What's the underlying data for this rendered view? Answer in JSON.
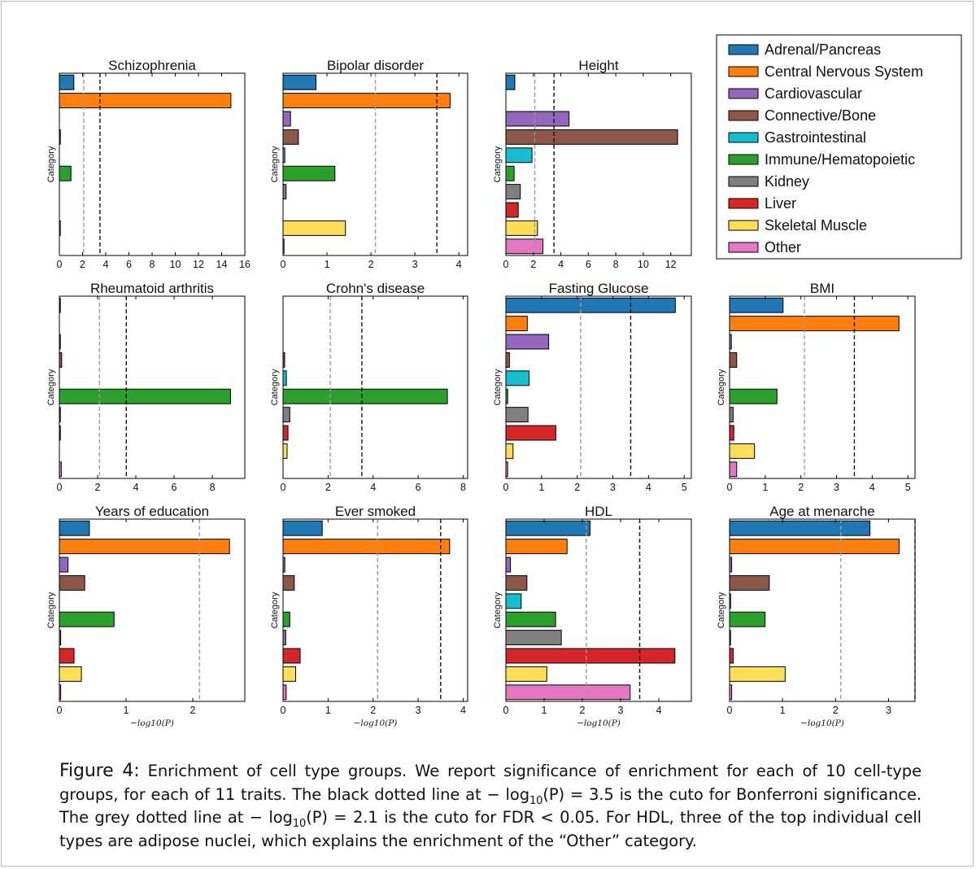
{
  "legend": {
    "entries": [
      {
        "label": "Adrenal/Pancreas",
        "color": "#1f77b4"
      },
      {
        "label": "Central Nervous System",
        "color": "#ff7f0e"
      },
      {
        "label": "Cardiovascular",
        "color": "#9467bd"
      },
      {
        "label": "Connective/Bone",
        "color": "#8c564b"
      },
      {
        "label": "Gastrointestinal",
        "color": "#17becf"
      },
      {
        "label": "Immune/Hematopoietic",
        "color": "#2ca02c"
      },
      {
        "label": "Kidney",
        "color": "#7f7f7f"
      },
      {
        "label": "Liver",
        "color": "#d62728"
      },
      {
        "label": "Skeletal Muscle",
        "color": "#ffdd57"
      },
      {
        "label": "Other",
        "color": "#e377c2"
      }
    ]
  },
  "ylabel": "Category",
  "xlabel": "−log10(P)",
  "caption": {
    "figure_label": "Figure 4:",
    "text_1": "Enrichment of cell type groups. We report significance of enrichment for each of 10 cell-type groups, for each of 11 traits. The black dotted line at",
    "math_1": "− log",
    "math_sub": "10",
    "math_2": "(P) = 3.5",
    "text_2": "is the cuto  for Bonferroni significance. The grey dotted line at",
    "math_3": "(P) = 2.1",
    "text_3": "is the cuto  for FDR < 0.05. For HDL, three of the top individual cell types are adipose nuclei, which explains the enrichment of the “Other” category."
  },
  "chart_data": [
    {
      "type": "bar",
      "orientation": "horizontal",
      "title": "Schizophrenia",
      "categories": [
        "Adrenal/Pancreas",
        "Central Nervous System",
        "Cardiovascular",
        "Connective/Bone",
        "Gastrointestinal",
        "Immune/Hematopoietic",
        "Kidney",
        "Liver",
        "Skeletal Muscle",
        "Other"
      ],
      "values": [
        1.25,
        14.8,
        0.0,
        0.05,
        0.0,
        1.0,
        0.0,
        0.0,
        0.08,
        0.0
      ],
      "xlim": [
        0,
        16
      ],
      "xticks": [
        0,
        2,
        4,
        6,
        8,
        10,
        12,
        14,
        16
      ],
      "fdr_line": 2.1,
      "bonferroni_line": 3.5,
      "ylabel": "Category",
      "xlabel": ""
    },
    {
      "type": "bar",
      "orientation": "horizontal",
      "title": "Bipolar disorder",
      "categories": [
        "Adrenal/Pancreas",
        "Central Nervous System",
        "Cardiovascular",
        "Connective/Bone",
        "Gastrointestinal",
        "Immune/Hematopoietic",
        "Kidney",
        "Liver",
        "Skeletal Muscle",
        "Other"
      ],
      "values": [
        0.75,
        3.8,
        0.17,
        0.35,
        0.04,
        1.18,
        0.07,
        0.0,
        1.42,
        0.02
      ],
      "xlim": [
        0,
        4.2
      ],
      "xticks": [
        0,
        1,
        2,
        3,
        4
      ],
      "fdr_line": 2.1,
      "bonferroni_line": 3.5,
      "ylabel": "Category",
      "xlabel": ""
    },
    {
      "type": "bar",
      "orientation": "horizontal",
      "title": "Height",
      "categories": [
        "Adrenal/Pancreas",
        "Central Nervous System",
        "Cardiovascular",
        "Connective/Bone",
        "Gastrointestinal",
        "Immune/Hematopoietic",
        "Kidney",
        "Liver",
        "Skeletal Muscle",
        "Other"
      ],
      "values": [
        0.65,
        0.0,
        4.6,
        12.5,
        1.9,
        0.6,
        1.05,
        0.9,
        2.3,
        2.7
      ],
      "xlim": [
        0,
        13.5
      ],
      "xticks": [
        0,
        2,
        4,
        6,
        8,
        10,
        12
      ],
      "fdr_line": 2.1,
      "bonferroni_line": 3.5,
      "ylabel": "Category",
      "xlabel": ""
    },
    {
      "type": "bar",
      "orientation": "horizontal",
      "title": "Rheumatoid arthritis",
      "categories": [
        "Adrenal/Pancreas",
        "Central Nervous System",
        "Cardiovascular",
        "Connective/Bone",
        "Gastrointestinal",
        "Immune/Hematopoietic",
        "Kidney",
        "Liver",
        "Skeletal Muscle",
        "Other"
      ],
      "values": [
        0.05,
        0.0,
        0.02,
        0.12,
        0.0,
        8.95,
        0.05,
        0.05,
        0.0,
        0.1
      ],
      "xlim": [
        0,
        9.7
      ],
      "xticks": [
        0,
        2,
        4,
        6,
        8
      ],
      "fdr_line": 2.1,
      "bonferroni_line": 3.5,
      "ylabel": "Category",
      "xlabel": ""
    },
    {
      "type": "bar",
      "orientation": "horizontal",
      "title": "Crohn's disease",
      "categories": [
        "Adrenal/Pancreas",
        "Central Nervous System",
        "Cardiovascular",
        "Connective/Bone",
        "Gastrointestinal",
        "Immune/Hematopoietic",
        "Kidney",
        "Liver",
        "Skeletal Muscle",
        "Other"
      ],
      "values": [
        0.0,
        0.0,
        0.0,
        0.07,
        0.15,
        7.3,
        0.3,
        0.22,
        0.18,
        0.0
      ],
      "xlim": [
        0,
        8.2
      ],
      "xticks": [
        0,
        2,
        4,
        6,
        8
      ],
      "fdr_line": 2.1,
      "bonferroni_line": 3.5,
      "ylabel": "Category",
      "xlabel": ""
    },
    {
      "type": "bar",
      "orientation": "horizontal",
      "title": "Fasting Glucose",
      "categories": [
        "Adrenal/Pancreas",
        "Central Nervous System",
        "Cardiovascular",
        "Connective/Bone",
        "Gastrointestinal",
        "Immune/Hematopoietic",
        "Kidney",
        "Liver",
        "Skeletal Muscle",
        "Other"
      ],
      "values": [
        4.75,
        0.6,
        1.2,
        0.1,
        0.65,
        0.05,
        0.62,
        1.4,
        0.2,
        0.05
      ],
      "xlim": [
        0,
        5.2
      ],
      "xticks": [
        0,
        1,
        2,
        3,
        4,
        5
      ],
      "fdr_line": 2.1,
      "bonferroni_line": 3.5,
      "ylabel": "Category",
      "xlabel": ""
    },
    {
      "type": "bar",
      "orientation": "horizontal",
      "title": "BMI",
      "categories": [
        "Adrenal/Pancreas",
        "Central Nervous System",
        "Cardiovascular",
        "Connective/Bone",
        "Gastrointestinal",
        "Immune/Hematopoietic",
        "Kidney",
        "Liver",
        "Skeletal Muscle",
        "Other"
      ],
      "values": [
        1.5,
        4.75,
        0.05,
        0.2,
        0.0,
        1.33,
        0.1,
        0.12,
        0.7,
        0.2
      ],
      "xlim": [
        0,
        5.2
      ],
      "xticks": [
        0,
        1,
        2,
        3,
        4,
        5
      ],
      "fdr_line": 2.1,
      "bonferroni_line": 3.5,
      "ylabel": "Category",
      "xlabel": ""
    },
    {
      "type": "bar",
      "orientation": "horizontal",
      "title": "Years of education",
      "categories": [
        "Adrenal/Pancreas",
        "Central Nervous System",
        "Cardiovascular",
        "Connective/Bone",
        "Gastrointestinal",
        "Immune/Hematopoietic",
        "Kidney",
        "Liver",
        "Skeletal Muscle",
        "Other"
      ],
      "values": [
        0.45,
        2.55,
        0.13,
        0.38,
        0.0,
        0.82,
        0.02,
        0.22,
        0.33,
        0.02
      ],
      "xlim": [
        0,
        2.78
      ],
      "xticks": [
        0,
        1,
        2
      ],
      "fdr_line": 2.1,
      "bonferroni_line": 3.5,
      "ylabel": "Category",
      "xlabel": "−log10(P)"
    },
    {
      "type": "bar",
      "orientation": "horizontal",
      "title": "Ever smoked",
      "categories": [
        "Adrenal/Pancreas",
        "Central Nervous System",
        "Cardiovascular",
        "Connective/Bone",
        "Gastrointestinal",
        "Immune/Hematopoietic",
        "Kidney",
        "Liver",
        "Skeletal Muscle",
        "Other"
      ],
      "values": [
        0.87,
        3.7,
        0.04,
        0.25,
        0.0,
        0.15,
        0.06,
        0.38,
        0.28,
        0.07
      ],
      "xlim": [
        0,
        4.1
      ],
      "xticks": [
        0,
        1,
        2,
        3,
        4
      ],
      "fdr_line": 2.1,
      "bonferroni_line": 3.5,
      "ylabel": "Category",
      "xlabel": "−log10(P)"
    },
    {
      "type": "bar",
      "orientation": "horizontal",
      "title": "HDL",
      "categories": [
        "Adrenal/Pancreas",
        "Central Nervous System",
        "Cardiovascular",
        "Connective/Bone",
        "Gastrointestinal",
        "Immune/Hematopoietic",
        "Kidney",
        "Liver",
        "Skeletal Muscle",
        "Other"
      ],
      "values": [
        2.2,
        1.6,
        0.12,
        0.55,
        0.4,
        1.3,
        1.45,
        4.42,
        1.07,
        3.25
      ],
      "xlim": [
        0,
        4.85
      ],
      "xticks": [
        0,
        1,
        2,
        3,
        4
      ],
      "fdr_line": 2.1,
      "bonferroni_line": 3.5,
      "ylabel": "Category",
      "xlabel": "−log10(P)"
    },
    {
      "type": "bar",
      "orientation": "horizontal",
      "title": "Age at menarche",
      "categories": [
        "Adrenal/Pancreas",
        "Central Nervous System",
        "Cardiovascular",
        "Connective/Bone",
        "Gastrointestinal",
        "Immune/Hematopoietic",
        "Kidney",
        "Liver",
        "Skeletal Muscle",
        "Other"
      ],
      "values": [
        2.65,
        3.2,
        0.04,
        0.75,
        0.02,
        0.67,
        0.01,
        0.07,
        1.05,
        0.04
      ],
      "xlim": [
        0,
        3.5
      ],
      "xticks": [
        0,
        1,
        2,
        3
      ],
      "fdr_line": 2.1,
      "bonferroni_line": 3.5,
      "ylabel": "Category",
      "xlabel": "−log10(P)"
    }
  ]
}
